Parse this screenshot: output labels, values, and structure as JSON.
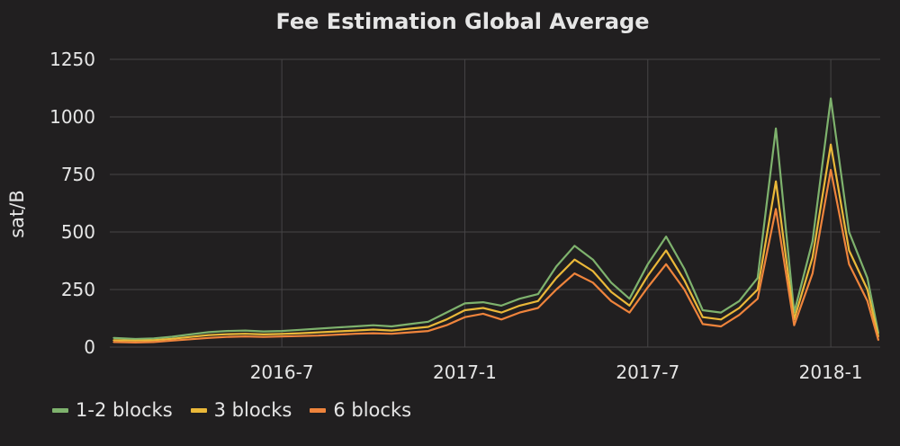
{
  "chart_data": {
    "type": "line",
    "title": "Fee Estimation Global Average",
    "xlabel": "",
    "ylabel": "sat/B",
    "ylim": [
      0,
      1250
    ],
    "yticks": [
      0,
      250,
      500,
      750,
      1000,
      1250
    ],
    "ytick_labels": [
      "0",
      "250",
      "500",
      "750",
      "1000",
      "1250"
    ],
    "xticks": [
      "2016-7",
      "2017-1",
      "2017-7",
      "2018-1"
    ],
    "xtick_values": [
      2016.5,
      2017.0,
      2017.5,
      2018.0
    ],
    "xlim": [
      2016.03,
      2018.135
    ],
    "grid": true,
    "legend_position": "bottom-left",
    "x": [
      2016.04,
      2016.1,
      2016.15,
      2016.2,
      2016.25,
      2016.3,
      2016.35,
      2016.4,
      2016.45,
      2016.5,
      2016.55,
      2016.6,
      2016.65,
      2016.7,
      2016.75,
      2016.8,
      2016.85,
      2016.9,
      2016.95,
      2017.0,
      2017.05,
      2017.1,
      2017.15,
      2017.2,
      2017.25,
      2017.3,
      2017.35,
      2017.4,
      2017.45,
      2017.5,
      2017.55,
      2017.6,
      2017.65,
      2017.7,
      2017.75,
      2017.8,
      2017.85,
      2017.9,
      2017.95,
      2018.0,
      2018.05,
      2018.1,
      2018.13
    ],
    "series": [
      {
        "name": "1-2 blocks",
        "color": "#7eb26d",
        "values": [
          40,
          35,
          38,
          45,
          55,
          65,
          70,
          72,
          68,
          70,
          75,
          80,
          85,
          90,
          95,
          90,
          100,
          110,
          150,
          190,
          195,
          180,
          210,
          230,
          350,
          440,
          380,
          280,
          210,
          360,
          480,
          340,
          160,
          150,
          200,
          300,
          950,
          150,
          460,
          1080,
          500,
          300,
          60
        ]
      },
      {
        "name": "3 blocks",
        "color": "#eab839",
        "values": [
          30,
          28,
          30,
          36,
          44,
          52,
          56,
          58,
          55,
          57,
          60,
          64,
          68,
          72,
          76,
          72,
          80,
          88,
          120,
          160,
          170,
          150,
          180,
          200,
          300,
          380,
          330,
          240,
          180,
          310,
          420,
          290,
          130,
          120,
          170,
          250,
          720,
          120,
          390,
          880,
          420,
          250,
          45
        ]
      },
      {
        "name": "6 blocks",
        "color": "#ef843c",
        "values": [
          22,
          20,
          22,
          28,
          34,
          40,
          44,
          46,
          44,
          46,
          48,
          50,
          54,
          58,
          60,
          58,
          64,
          70,
          95,
          130,
          145,
          120,
          150,
          170,
          250,
          320,
          280,
          200,
          150,
          260,
          360,
          250,
          100,
          90,
          140,
          210,
          600,
          95,
          320,
          770,
          360,
          200,
          30
        ]
      }
    ]
  }
}
